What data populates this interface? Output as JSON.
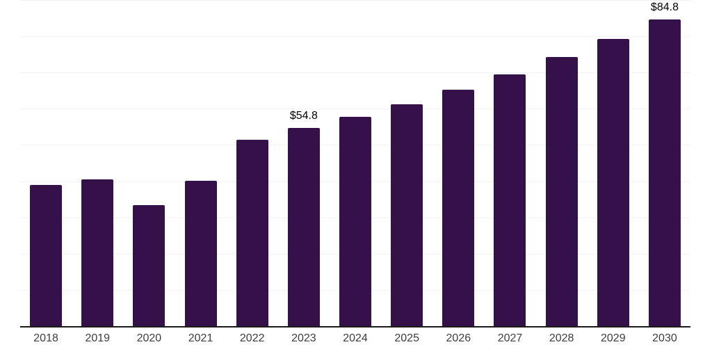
{
  "chart_data": {
    "type": "bar",
    "title": "",
    "xlabel": "",
    "ylabel": "",
    "categories": [
      "2018",
      "2019",
      "2020",
      "2021",
      "2022",
      "2023",
      "2024",
      "2025",
      "2026",
      "2027",
      "2028",
      "2029",
      "2030"
    ],
    "values": [
      39.1,
      40.7,
      33.6,
      40.3,
      51.6,
      54.8,
      58.0,
      61.5,
      65.4,
      69.6,
      74.4,
      79.5,
      84.8
    ],
    "data_labels": {
      "2023": "$54.8",
      "2030": "$84.8"
    },
    "ylim": [
      0,
      90.2
    ],
    "gridline_interval": 10,
    "grid": "horizontal",
    "legend": "none",
    "y_axis_tick_labels_visible": false,
    "colors": {
      "bar": "#341149",
      "axis_line": "#1a1a1a",
      "gridline": "#f2f2f2",
      "x_tick_label": "#3d3d3d",
      "value_label": "#000000",
      "background": "#ffffff"
    }
  }
}
